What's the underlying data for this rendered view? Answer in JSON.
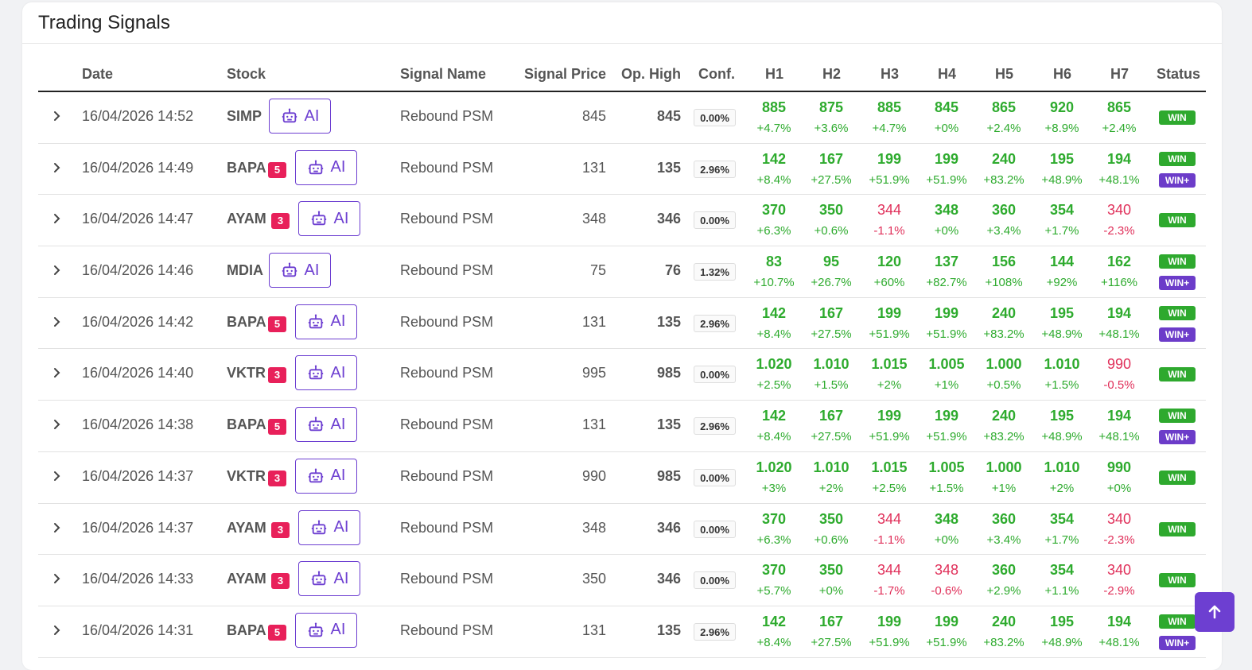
{
  "title": "Trading Signals",
  "headers": {
    "date": "Date",
    "stock": "Stock",
    "signal_name": "Signal Name",
    "signal_price": "Signal Price",
    "op_high": "Op. High",
    "conf": "Conf.",
    "h": [
      "H1",
      "H2",
      "H3",
      "H4",
      "H5",
      "H6",
      "H7"
    ],
    "status": "Status"
  },
  "ai_label": "AI",
  "colors": {
    "accent": "#6d3fd1",
    "up": "#2eab2e",
    "down": "#e0305a",
    "win": "#2ea92e",
    "win_plus": "#6c3cc9",
    "count_badge": "#e8205a"
  },
  "rows": [
    {
      "date": "16/04/2026 14:52",
      "ticker": "SIMP",
      "count": "",
      "signal": "Rebound PSM",
      "price": "845",
      "op_high": "845",
      "conf": "0.00%",
      "h": [
        {
          "v": "885",
          "p": "+4.7%",
          "d": "up"
        },
        {
          "v": "875",
          "p": "+3.6%",
          "d": "up"
        },
        {
          "v": "885",
          "p": "+4.7%",
          "d": "up"
        },
        {
          "v": "845",
          "p": "+0%",
          "d": "up"
        },
        {
          "v": "865",
          "p": "+2.4%",
          "d": "up"
        },
        {
          "v": "920",
          "p": "+8.9%",
          "d": "up"
        },
        {
          "v": "865",
          "p": "+2.4%",
          "d": "up"
        }
      ],
      "status": [
        "WIN"
      ]
    },
    {
      "date": "16/04/2026 14:49",
      "ticker": "BAPA",
      "count": "5",
      "signal": "Rebound PSM",
      "price": "131",
      "op_high": "135",
      "conf": "2.96%",
      "h": [
        {
          "v": "142",
          "p": "+8.4%",
          "d": "up"
        },
        {
          "v": "167",
          "p": "+27.5%",
          "d": "up"
        },
        {
          "v": "199",
          "p": "+51.9%",
          "d": "up"
        },
        {
          "v": "199",
          "p": "+51.9%",
          "d": "up"
        },
        {
          "v": "240",
          "p": "+83.2%",
          "d": "up"
        },
        {
          "v": "195",
          "p": "+48.9%",
          "d": "up"
        },
        {
          "v": "194",
          "p": "+48.1%",
          "d": "up"
        }
      ],
      "status": [
        "WIN",
        "WIN+"
      ]
    },
    {
      "date": "16/04/2026 14:47",
      "ticker": "AYAM",
      "count": "3",
      "signal": "Rebound PSM",
      "price": "348",
      "op_high": "346",
      "conf": "0.00%",
      "h": [
        {
          "v": "370",
          "p": "+6.3%",
          "d": "up"
        },
        {
          "v": "350",
          "p": "+0.6%",
          "d": "up"
        },
        {
          "v": "344",
          "p": "-1.1%",
          "d": "dn"
        },
        {
          "v": "348",
          "p": "+0%",
          "d": "up"
        },
        {
          "v": "360",
          "p": "+3.4%",
          "d": "up"
        },
        {
          "v": "354",
          "p": "+1.7%",
          "d": "up"
        },
        {
          "v": "340",
          "p": "-2.3%",
          "d": "dn"
        }
      ],
      "status": [
        "WIN"
      ]
    },
    {
      "date": "16/04/2026 14:46",
      "ticker": "MDIA",
      "count": "",
      "signal": "Rebound PSM",
      "price": "75",
      "op_high": "76",
      "conf": "1.32%",
      "h": [
        {
          "v": "83",
          "p": "+10.7%",
          "d": "up"
        },
        {
          "v": "95",
          "p": "+26.7%",
          "d": "up"
        },
        {
          "v": "120",
          "p": "+60%",
          "d": "up"
        },
        {
          "v": "137",
          "p": "+82.7%",
          "d": "up"
        },
        {
          "v": "156",
          "p": "+108%",
          "d": "up"
        },
        {
          "v": "144",
          "p": "+92%",
          "d": "up"
        },
        {
          "v": "162",
          "p": "+116%",
          "d": "up"
        }
      ],
      "status": [
        "WIN",
        "WIN+"
      ]
    },
    {
      "date": "16/04/2026 14:42",
      "ticker": "BAPA",
      "count": "5",
      "signal": "Rebound PSM",
      "price": "131",
      "op_high": "135",
      "conf": "2.96%",
      "h": [
        {
          "v": "142",
          "p": "+8.4%",
          "d": "up"
        },
        {
          "v": "167",
          "p": "+27.5%",
          "d": "up"
        },
        {
          "v": "199",
          "p": "+51.9%",
          "d": "up"
        },
        {
          "v": "199",
          "p": "+51.9%",
          "d": "up"
        },
        {
          "v": "240",
          "p": "+83.2%",
          "d": "up"
        },
        {
          "v": "195",
          "p": "+48.9%",
          "d": "up"
        },
        {
          "v": "194",
          "p": "+48.1%",
          "d": "up"
        }
      ],
      "status": [
        "WIN",
        "WIN+"
      ]
    },
    {
      "date": "16/04/2026 14:40",
      "ticker": "VKTR",
      "count": "3",
      "signal": "Rebound PSM",
      "price": "995",
      "op_high": "985",
      "conf": "0.00%",
      "h": [
        {
          "v": "1.020",
          "p": "+2.5%",
          "d": "up"
        },
        {
          "v": "1.010",
          "p": "+1.5%",
          "d": "up"
        },
        {
          "v": "1.015",
          "p": "+2%",
          "d": "up"
        },
        {
          "v": "1.005",
          "p": "+1%",
          "d": "up"
        },
        {
          "v": "1.000",
          "p": "+0.5%",
          "d": "up"
        },
        {
          "v": "1.010",
          "p": "+1.5%",
          "d": "up"
        },
        {
          "v": "990",
          "p": "-0.5%",
          "d": "dn"
        }
      ],
      "status": [
        "WIN"
      ]
    },
    {
      "date": "16/04/2026 14:38",
      "ticker": "BAPA",
      "count": "5",
      "signal": "Rebound PSM",
      "price": "131",
      "op_high": "135",
      "conf": "2.96%",
      "h": [
        {
          "v": "142",
          "p": "+8.4%",
          "d": "up"
        },
        {
          "v": "167",
          "p": "+27.5%",
          "d": "up"
        },
        {
          "v": "199",
          "p": "+51.9%",
          "d": "up"
        },
        {
          "v": "199",
          "p": "+51.9%",
          "d": "up"
        },
        {
          "v": "240",
          "p": "+83.2%",
          "d": "up"
        },
        {
          "v": "195",
          "p": "+48.9%",
          "d": "up"
        },
        {
          "v": "194",
          "p": "+48.1%",
          "d": "up"
        }
      ],
      "status": [
        "WIN",
        "WIN+"
      ]
    },
    {
      "date": "16/04/2026 14:37",
      "ticker": "VKTR",
      "count": "3",
      "signal": "Rebound PSM",
      "price": "990",
      "op_high": "985",
      "conf": "0.00%",
      "h": [
        {
          "v": "1.020",
          "p": "+3%",
          "d": "up"
        },
        {
          "v": "1.010",
          "p": "+2%",
          "d": "up"
        },
        {
          "v": "1.015",
          "p": "+2.5%",
          "d": "up"
        },
        {
          "v": "1.005",
          "p": "+1.5%",
          "d": "up"
        },
        {
          "v": "1.000",
          "p": "+1%",
          "d": "up"
        },
        {
          "v": "1.010",
          "p": "+2%",
          "d": "up"
        },
        {
          "v": "990",
          "p": "+0%",
          "d": "up"
        }
      ],
      "status": [
        "WIN"
      ]
    },
    {
      "date": "16/04/2026 14:37",
      "ticker": "AYAM",
      "count": "3",
      "signal": "Rebound PSM",
      "price": "348",
      "op_high": "346",
      "conf": "0.00%",
      "h": [
        {
          "v": "370",
          "p": "+6.3%",
          "d": "up"
        },
        {
          "v": "350",
          "p": "+0.6%",
          "d": "up"
        },
        {
          "v": "344",
          "p": "-1.1%",
          "d": "dn"
        },
        {
          "v": "348",
          "p": "+0%",
          "d": "up"
        },
        {
          "v": "360",
          "p": "+3.4%",
          "d": "up"
        },
        {
          "v": "354",
          "p": "+1.7%",
          "d": "up"
        },
        {
          "v": "340",
          "p": "-2.3%",
          "d": "dn"
        }
      ],
      "status": [
        "WIN"
      ]
    },
    {
      "date": "16/04/2026 14:33",
      "ticker": "AYAM",
      "count": "3",
      "signal": "Rebound PSM",
      "price": "350",
      "op_high": "346",
      "conf": "0.00%",
      "h": [
        {
          "v": "370",
          "p": "+5.7%",
          "d": "up"
        },
        {
          "v": "350",
          "p": "+0%",
          "d": "up"
        },
        {
          "v": "344",
          "p": "-1.7%",
          "d": "dn"
        },
        {
          "v": "348",
          "p": "-0.6%",
          "d": "dn"
        },
        {
          "v": "360",
          "p": "+2.9%",
          "d": "up"
        },
        {
          "v": "354",
          "p": "+1.1%",
          "d": "up"
        },
        {
          "v": "340",
          "p": "-2.9%",
          "d": "dn"
        }
      ],
      "status": [
        "WIN"
      ]
    },
    {
      "date": "16/04/2026 14:31",
      "ticker": "BAPA",
      "count": "5",
      "signal": "Rebound PSM",
      "price": "131",
      "op_high": "135",
      "conf": "2.96%",
      "h": [
        {
          "v": "142",
          "p": "+8.4%",
          "d": "up"
        },
        {
          "v": "167",
          "p": "+27.5%",
          "d": "up"
        },
        {
          "v": "199",
          "p": "+51.9%",
          "d": "up"
        },
        {
          "v": "199",
          "p": "+51.9%",
          "d": "up"
        },
        {
          "v": "240",
          "p": "+83.2%",
          "d": "up"
        },
        {
          "v": "195",
          "p": "+48.9%",
          "d": "up"
        },
        {
          "v": "194",
          "p": "+48.1%",
          "d": "up"
        }
      ],
      "status": [
        "WIN",
        "WIN+"
      ]
    }
  ]
}
